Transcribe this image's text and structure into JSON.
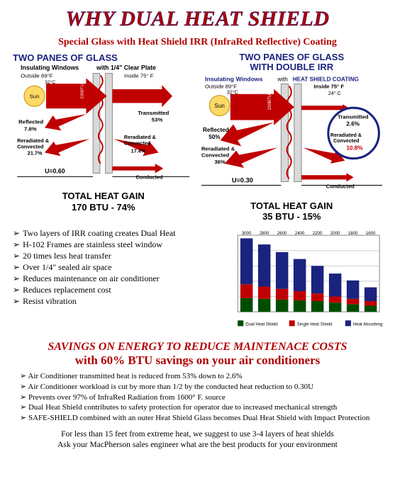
{
  "title": "WHY DUAL HEAT SHIELD",
  "subtitle": "Special Glass with Heat Shield IRR (InfraRed Reflective) Coating",
  "diag_left": {
    "header": "TWO PANES OF GLASS",
    "sub1": "Insulating Windows",
    "sub2": "with 1/4\" Clear Plate",
    "outside": "Outside 89°F",
    "outside_c": "32°C",
    "inside": "Inside 75° F",
    "sun": "Sun",
    "btu_label": "230BTU",
    "reflected": "Reflected 7.8%",
    "transmitted": "Transmitted 53%",
    "rerad_left": "Reradiated & Convected 21.7%",
    "rerad_right": "Reradiated & Convected 17.4%",
    "u": "U=0.60",
    "conducted": "Conducted",
    "total": "TOTAL HEAT GAIN 170 BTU - 74%",
    "colors": {
      "arrow": "#c00000",
      "sun": "#ffd966",
      "glass": "#bfbfbf"
    }
  },
  "diag_right": {
    "header": "TWO PANES OF GLASS WITH DOUBLE IRR",
    "sub1": "Insulating Windows",
    "sub2": "with",
    "sub2b": "HEAT SHIELD COATING",
    "outside": "Outside 89°F",
    "outside_c": "32°C",
    "inside": "Inside 75° F",
    "inside_c": "24° C",
    "sun": "Sun",
    "btu_label": "230BTU",
    "reflected": "Reflected 50%",
    "transmitted": "Transmitted 2.6%",
    "rerad_left": "Reradiated & Convected 36%",
    "rerad_right": "Reradiated & Convected 10.8%",
    "u": "U=0.30",
    "conducted": "Conducted",
    "total": "TOTAL HEAT GAIN 35 BTU - 15%",
    "colors": {
      "arrow": "#c00000",
      "sun": "#ffd966",
      "glass": "#bfbfbf",
      "circle": "#1a237e"
    }
  },
  "bullets": [
    "Two layers of IRR coating creates Dual Heat",
    "H-102 Frames are stainless steel window",
    "20 times less heat transfer",
    "Over 1/4\" sealed air space",
    "Reduces maintenance on air conditioner",
    "Reduces replacement cost",
    "Resist vibration"
  ],
  "chart": {
    "type": "stacked-bar",
    "x_labels": [
      "3000",
      "2800",
      "2600",
      "2400",
      "2200",
      "2000",
      "1800",
      "1600"
    ],
    "ymax": 100,
    "series": [
      {
        "name": "Dual Heat Shield",
        "color": "#004d00",
        "values": [
          18,
          17,
          16,
          15,
          14,
          12,
          10,
          8
        ]
      },
      {
        "name": "Single Heat Shield",
        "color": "#c00000",
        "values": [
          18,
          16,
          14,
          12,
          10,
          8,
          7,
          6
        ]
      },
      {
        "name": "Heat Absorbing",
        "color": "#1a237e",
        "values": [
          60,
          55,
          48,
          42,
          36,
          30,
          24,
          18
        ]
      }
    ],
    "background": "#ffffff",
    "grid": "#cfcfcf"
  },
  "savings_head": "SAVINGS ON ENERGY TO REDUCE MAINTENACE COSTS",
  "savings_sub": "with 60% BTU savings on your air conditioners",
  "bullets2": [
    "Air Conditioner transmitted heat is reduced from 53% down to 2.6%",
    "Air Conditioner workload is cut by more than 1/2 by the conducted heat reduction to 0.30U",
    "Prevents over 97% of InfraRed Radiation from 1600° F. source",
    "Dual Heat Shield contributes to safety protection for operator due to increased mechanical strength",
    "SAFE-SHIELD combined with an outer Heat Shield Glass becomes Dual Heat Shield with Impact Protection"
  ],
  "footer1": "For less than 15 feet from extreme heat, we suggest to use 3-4 layers of heat shields",
  "footer2": "Ask your MacPherson sales engineer what are the best products for your environment"
}
